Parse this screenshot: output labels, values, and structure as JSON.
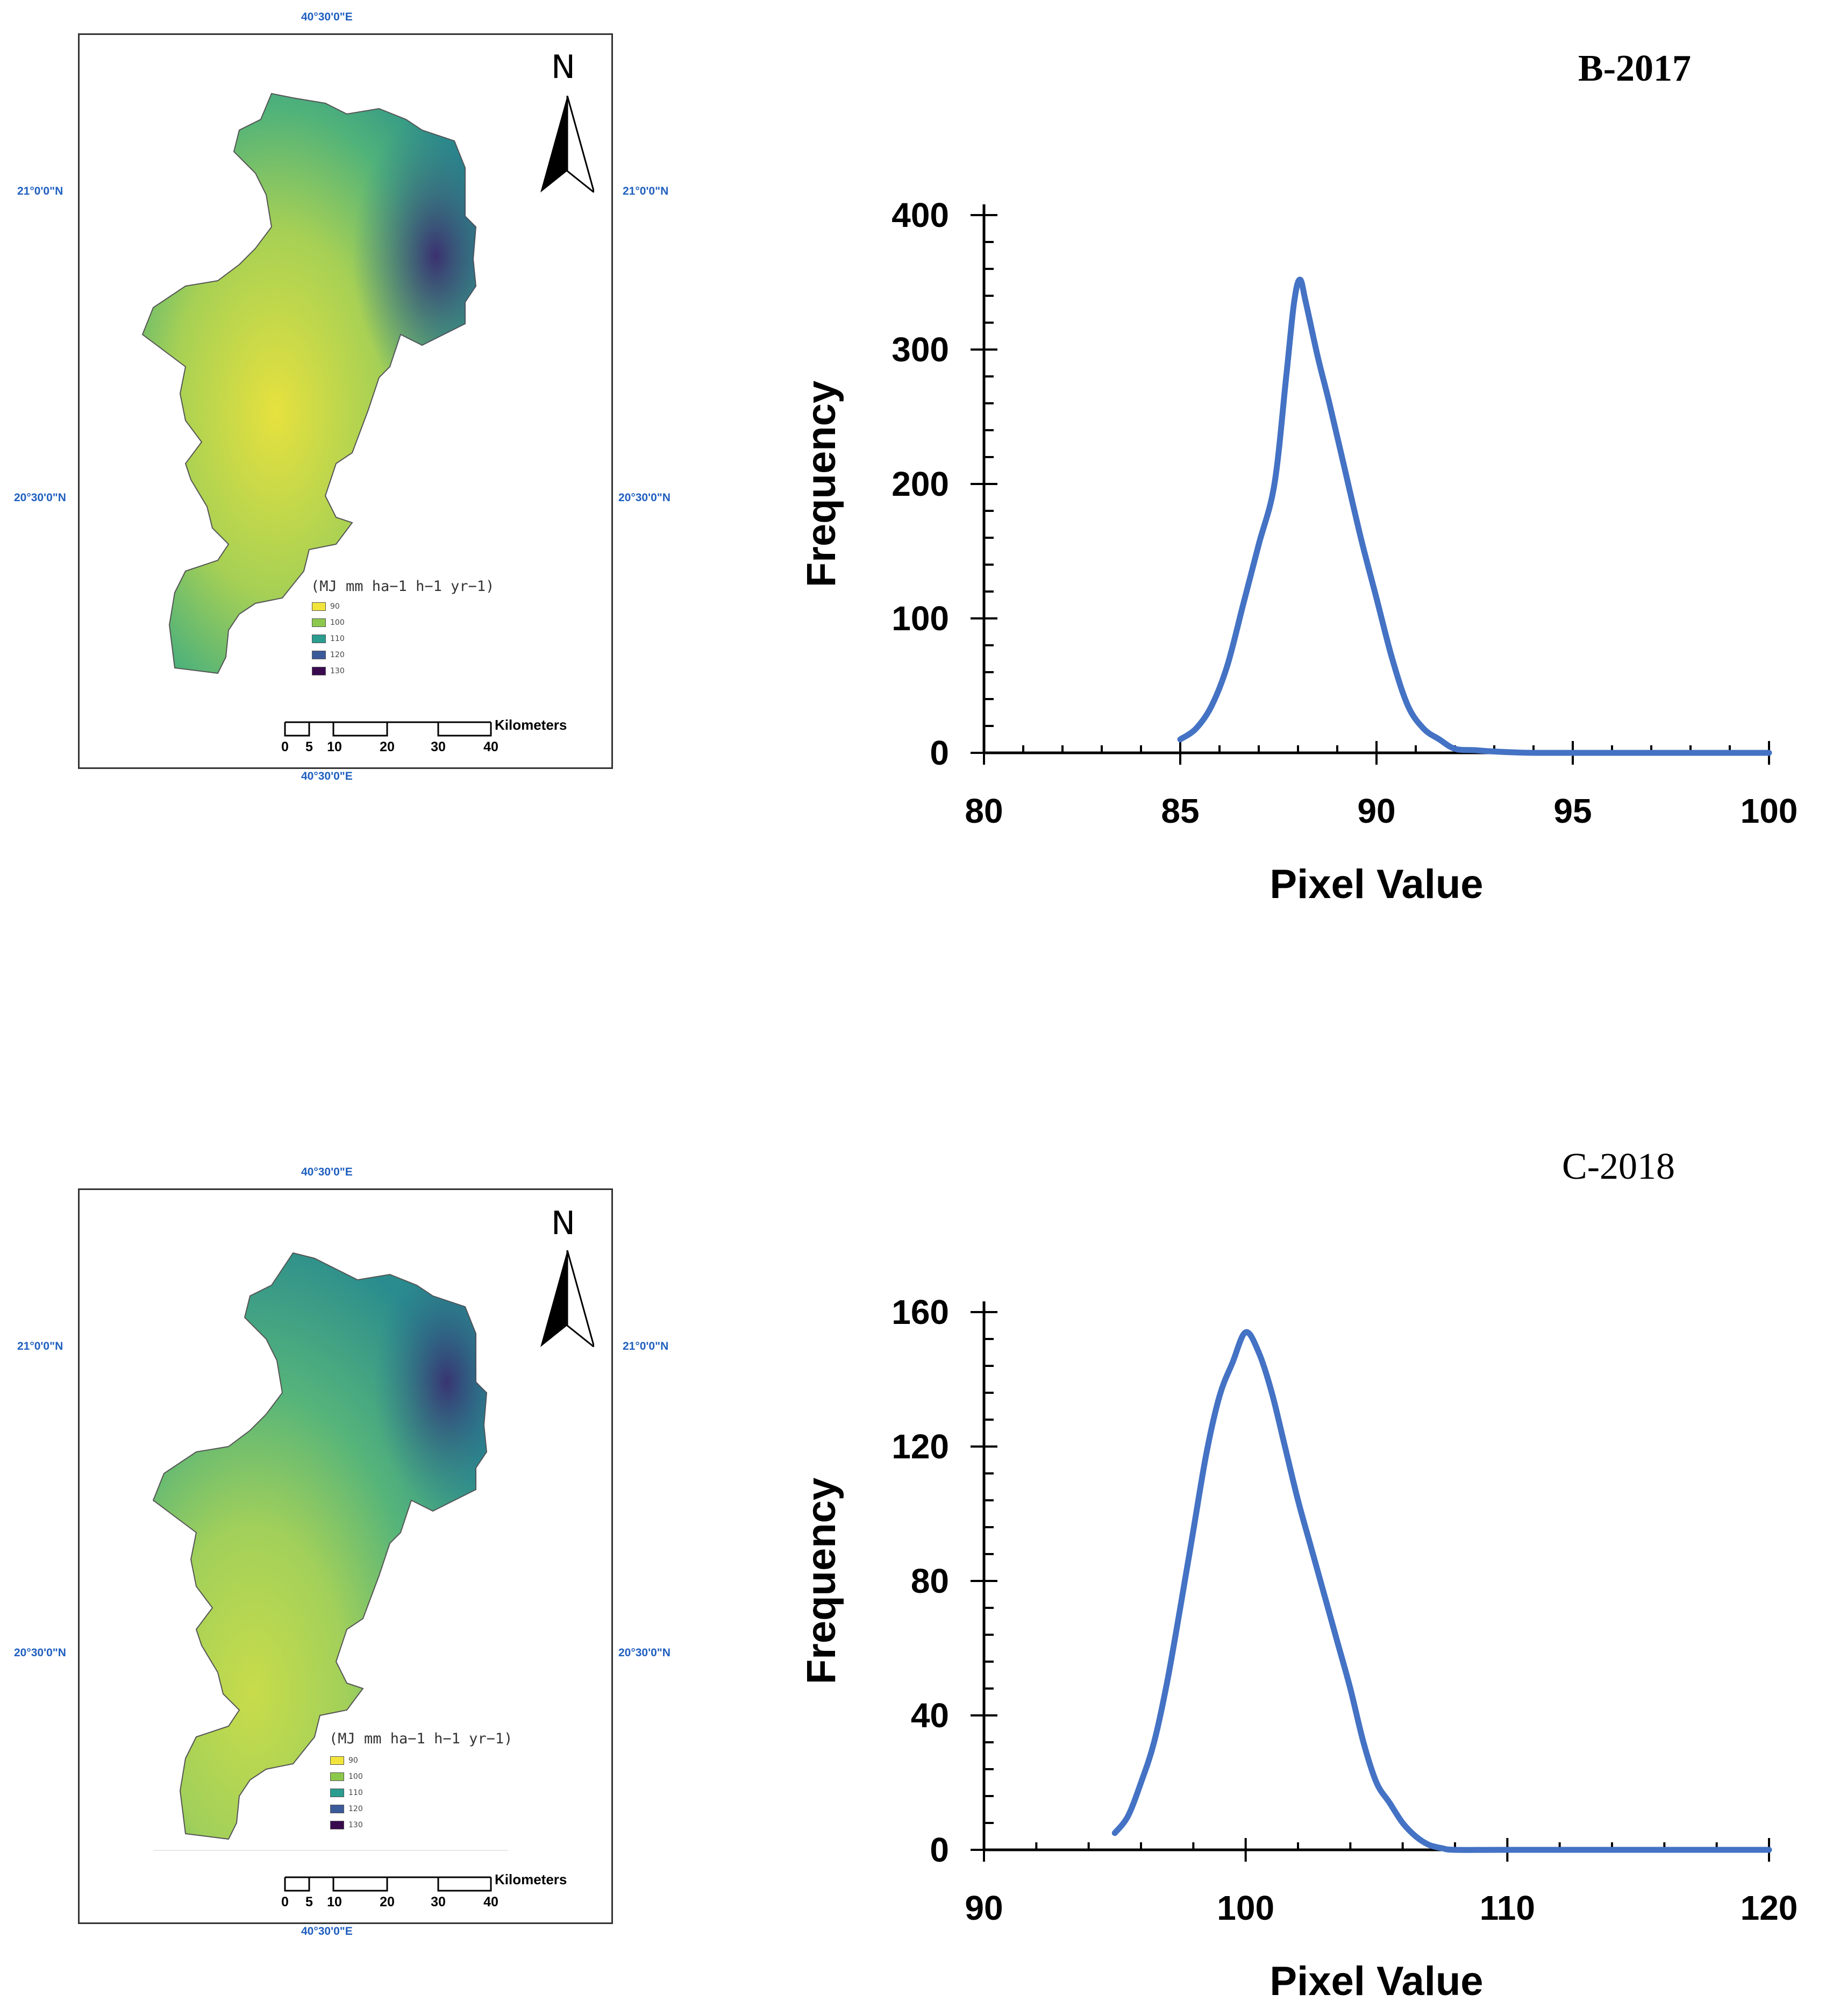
{
  "maps": [
    {
      "coord_top": "40°30'0\"E",
      "coord_bottom": "40°30'0\"E",
      "coord_left_upper": "21°0'0\"N",
      "coord_left_lower": "20°30'0\"N",
      "coord_right_upper": "21°0'0\"N",
      "coord_right_lower": "20°30'0\"N",
      "north_label": "N",
      "legend_title": "(MJ mm ha−1 h−1 yr−1)",
      "legend": [
        {
          "label": "90",
          "color": "#f2e43a"
        },
        {
          "label": "100",
          "color": "#8cc84b"
        },
        {
          "label": "110",
          "color": "#2a9d8f"
        },
        {
          "label": "120",
          "color": "#3b5a9a"
        },
        {
          "label": "130",
          "color": "#3a0a4f"
        }
      ],
      "scale_label": "Kilometers",
      "scale_ticks": [
        "0",
        "5",
        "10",
        "20",
        "30",
        "40"
      ]
    },
    {
      "coord_top": "40°30'0\"E",
      "coord_bottom": "40°30'0\"E",
      "coord_left_upper": "21°0'0\"N",
      "coord_left_lower": "20°30'0\"N",
      "coord_right_upper": "21°0'0\"N",
      "coord_right_lower": "20°30'0\"N",
      "north_label": "N",
      "legend_title": "(MJ mm ha−1 h−1 yr−1)",
      "legend": [
        {
          "label": "90",
          "color": "#f2e43a"
        },
        {
          "label": "100",
          "color": "#8cc84b"
        },
        {
          "label": "110",
          "color": "#2a9d8f"
        },
        {
          "label": "120",
          "color": "#3b5a9a"
        },
        {
          "label": "130",
          "color": "#3a0a4f"
        }
      ],
      "scale_label": "Kilometers",
      "scale_ticks": [
        "0",
        "5",
        "10",
        "20",
        "30",
        "40"
      ]
    }
  ],
  "chart_data": [
    {
      "type": "line",
      "title": "B-2017",
      "xlabel": "Pixel Value",
      "ylabel": "Frequency",
      "xlim": [
        80,
        100
      ],
      "ylim": [
        0,
        400
      ],
      "xticks": [
        80,
        85,
        90,
        95,
        100
      ],
      "yticks": [
        0,
        100,
        200,
        300,
        400
      ],
      "series": [
        {
          "name": "frequency",
          "color": "#4472c4",
          "x": [
            85,
            85.4,
            85.8,
            86.2,
            86.6,
            87,
            87.4,
            87.7,
            87.9,
            88.05,
            88.2,
            88.5,
            88.8,
            89.2,
            89.6,
            90,
            90.4,
            90.8,
            91.2,
            91.6,
            92,
            92.5,
            93,
            94,
            96,
            100
          ],
          "y": [
            10,
            18,
            35,
            65,
            110,
            155,
            200,
            280,
            335,
            352,
            335,
            295,
            260,
            210,
            160,
            115,
            70,
            35,
            18,
            10,
            3,
            2,
            1,
            0,
            0,
            0
          ]
        }
      ]
    },
    {
      "type": "line",
      "title": "C-2018",
      "xlabel": "Pixel Value",
      "ylabel": "Frequency",
      "xlim": [
        90,
        120
      ],
      "ylim": [
        0,
        160
      ],
      "xticks": [
        90,
        100,
        110,
        120
      ],
      "yticks": [
        0,
        40,
        80,
        120,
        160
      ],
      "series": [
        {
          "name": "frequency",
          "color": "#4472c4",
          "x": [
            95,
            95.5,
            96,
            96.5,
            97,
            97.5,
            98,
            98.5,
            99,
            99.5,
            100,
            100.5,
            101,
            101.5,
            102,
            102.5,
            103,
            103.5,
            104,
            104.5,
            105,
            105.5,
            106,
            106.5,
            107,
            107.5,
            108,
            110,
            115,
            120
          ],
          "y": [
            5,
            10,
            20,
            32,
            50,
            72,
            95,
            118,
            135,
            145,
            154,
            148,
            136,
            120,
            104,
            90,
            76,
            62,
            48,
            32,
            20,
            14,
            8,
            4,
            1.5,
            0.5,
            0,
            0,
            0,
            0
          ]
        }
      ]
    }
  ]
}
